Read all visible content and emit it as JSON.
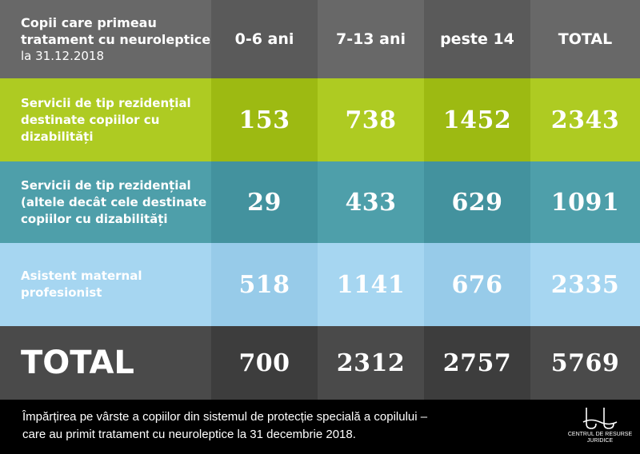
{
  "chart_data": {
    "type": "table",
    "header": {
      "title_line1": "Copii care primeau",
      "title_line2": "tratament cu neuroleptice",
      "subtitle": "la 31.12.2018",
      "columns": [
        "0-6 ani",
        "7-13 ani",
        "peste 14",
        "TOTAL"
      ]
    },
    "rows": [
      {
        "label_lines": [
          "Servicii de tip rezidențial",
          "destinate copiilor cu",
          "dizabilități"
        ],
        "values": [
          "153",
          "738",
          "1452",
          "2343"
        ]
      },
      {
        "label_lines": [
          "Servicii de tip rezidențial",
          "(altele decât cele destinate",
          "copiilor cu dizabilități"
        ],
        "values": [
          "29",
          "433",
          "629",
          "1091"
        ]
      },
      {
        "label_lines": [
          "Asistent maternal",
          "profesionist"
        ],
        "values": [
          "518",
          "1141",
          "676",
          "2335"
        ]
      }
    ],
    "total": {
      "label": "TOTAL",
      "values": [
        "700",
        "2312",
        "2757",
        "5769"
      ]
    }
  },
  "caption": {
    "line1": "Împărțirea pe vârste a copiilor din sistemul de protecție specială a copilului –",
    "line2": "care au primit tratament cu neuroleptice la 31 decembrie 2018."
  },
  "logo": {
    "line1": "CENTRUL DE RESURSE",
    "line2": "JURIDICE"
  },
  "colors": {
    "header_light": "#686868",
    "header_dark": "#5a5a5a",
    "green_light": "#aecb22",
    "green_dark": "#9dba12",
    "teal_light": "#4e9faa",
    "teal_dark": "#43929e",
    "blue_light": "#a6d6f1",
    "blue_dark": "#97cbe9",
    "total_light": "#4a4a4a",
    "total_dark": "#3d3d3d",
    "footer": "#000000"
  }
}
